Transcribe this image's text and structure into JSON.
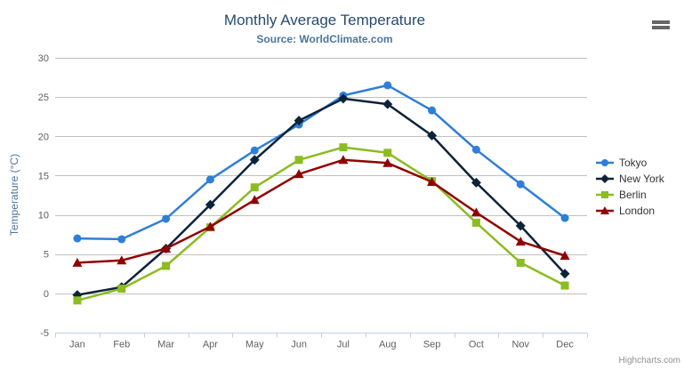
{
  "chart_data": {
    "type": "line",
    "title": "Monthly Average Temperature",
    "subtitle": "Source: WorldClimate.com",
    "xlabel": "",
    "ylabel": "Temperature (°C)",
    "ylim": [
      -5,
      30
    ],
    "yticks": [
      -5,
      0,
      5,
      10,
      15,
      20,
      25,
      30
    ],
    "grid": true,
    "legend_position": "right",
    "categories": [
      "Jan",
      "Feb",
      "Mar",
      "Apr",
      "May",
      "Jun",
      "Jul",
      "Aug",
      "Sep",
      "Oct",
      "Nov",
      "Dec"
    ],
    "series": [
      {
        "name": "Tokyo",
        "marker": "circle",
        "color": "#2f7ed8",
        "values": [
          7.0,
          6.9,
          9.5,
          14.5,
          18.2,
          21.5,
          25.2,
          26.5,
          23.3,
          18.3,
          13.9,
          9.6
        ]
      },
      {
        "name": "New York",
        "marker": "diamond",
        "color": "#0d233a",
        "values": [
          -0.2,
          0.8,
          5.7,
          11.3,
          17.0,
          22.0,
          24.8,
          24.1,
          20.1,
          14.1,
          8.6,
          2.5
        ]
      },
      {
        "name": "Berlin",
        "marker": "square",
        "color": "#8bbc21",
        "values": [
          -0.9,
          0.6,
          3.5,
          8.4,
          13.5,
          17.0,
          18.6,
          17.9,
          14.3,
          9.0,
          3.9,
          1.0
        ]
      },
      {
        "name": "London",
        "marker": "triangle",
        "color": "#910000",
        "values": [
          3.9,
          4.2,
          5.7,
          8.5,
          11.9,
          15.2,
          17.0,
          16.6,
          14.2,
          10.3,
          6.6,
          4.8
        ]
      }
    ]
  },
  "toolbar": {
    "menu_icon": "hamburger-menu"
  },
  "credits": {
    "label": "Highcharts.com"
  },
  "colors": {
    "title": "#274b6d",
    "subtitle": "#4d759e",
    "axis_title": "#4d759e",
    "axis_label": "#606063",
    "grid_line": "#c0c0c0",
    "axis_line": "#c0d0e0",
    "legend_text": "#333333",
    "menu_icon": "#666666",
    "credits_text": "#909090",
    "background": "#ffffff"
  }
}
